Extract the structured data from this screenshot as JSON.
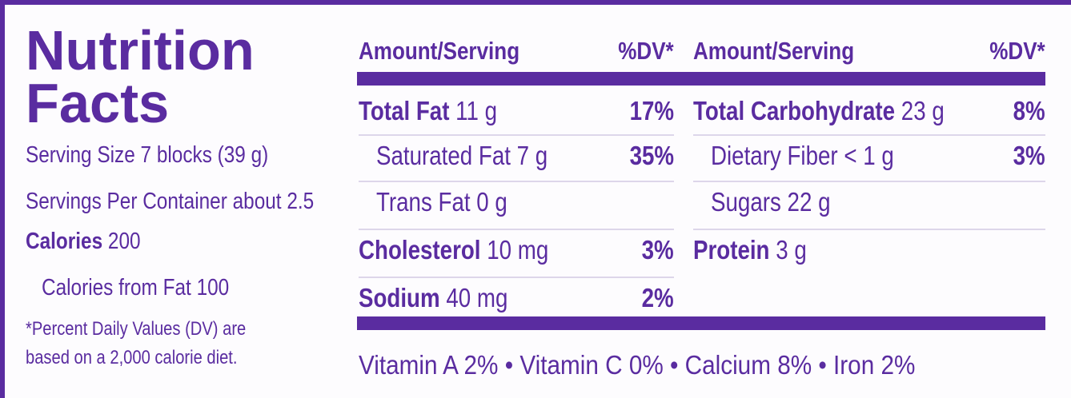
{
  "title": [
    "Nutrition",
    "Facts"
  ],
  "serving_size": "Serving Size 7 blocks (39 g)",
  "servings_per_container": "Servings Per Container about 2.5",
  "calories": {
    "label": "Calories",
    "amount": "200"
  },
  "calories_from_fat": "Calories from Fat 100",
  "footnote": [
    "*Percent Daily Values (DV) are",
    "based on a 2,000 calorie diet."
  ],
  "columns": [
    {
      "header_amount": "Amount/Serving",
      "header_dv": "%DV*",
      "rows": [
        {
          "name": "Total Fat",
          "amount": "11 g",
          "dv": "17%",
          "bold": true,
          "indent": false
        },
        {
          "name": "Saturated Fat",
          "amount": "7 g",
          "dv": "35%",
          "bold": false,
          "indent": true
        },
        {
          "name": "Trans Fat",
          "amount": "0 g",
          "bold": false,
          "indent": true
        },
        {
          "name": "Cholesterol",
          "amount": "10 mg",
          "dv": "3%",
          "bold": true,
          "indent": false
        },
        {
          "name": "Sodium",
          "amount": "40 mg",
          "dv": "2%",
          "bold": true,
          "indent": false
        }
      ]
    },
    {
      "header_amount": "Amount/Serving",
      "header_dv": "%DV*",
      "rows": [
        {
          "name": "Total Carbohydrate",
          "amount": "23 g",
          "dv": "8%",
          "bold": true,
          "indent": false
        },
        {
          "name": "Dietary Fiber",
          "amount": "< 1 g",
          "dv": "3%",
          "bold": false,
          "indent": true
        },
        {
          "name": "Sugars",
          "amount": "22 g",
          "bold": false,
          "indent": true
        },
        {
          "name": "Protein",
          "amount": "3 g",
          "bold": true,
          "indent": false
        }
      ]
    }
  ],
  "vitamins": [
    "Vitamin A 2%",
    "Vitamin C 0%",
    "Calcium 8%",
    "Iron 2%"
  ],
  "separator": "•"
}
